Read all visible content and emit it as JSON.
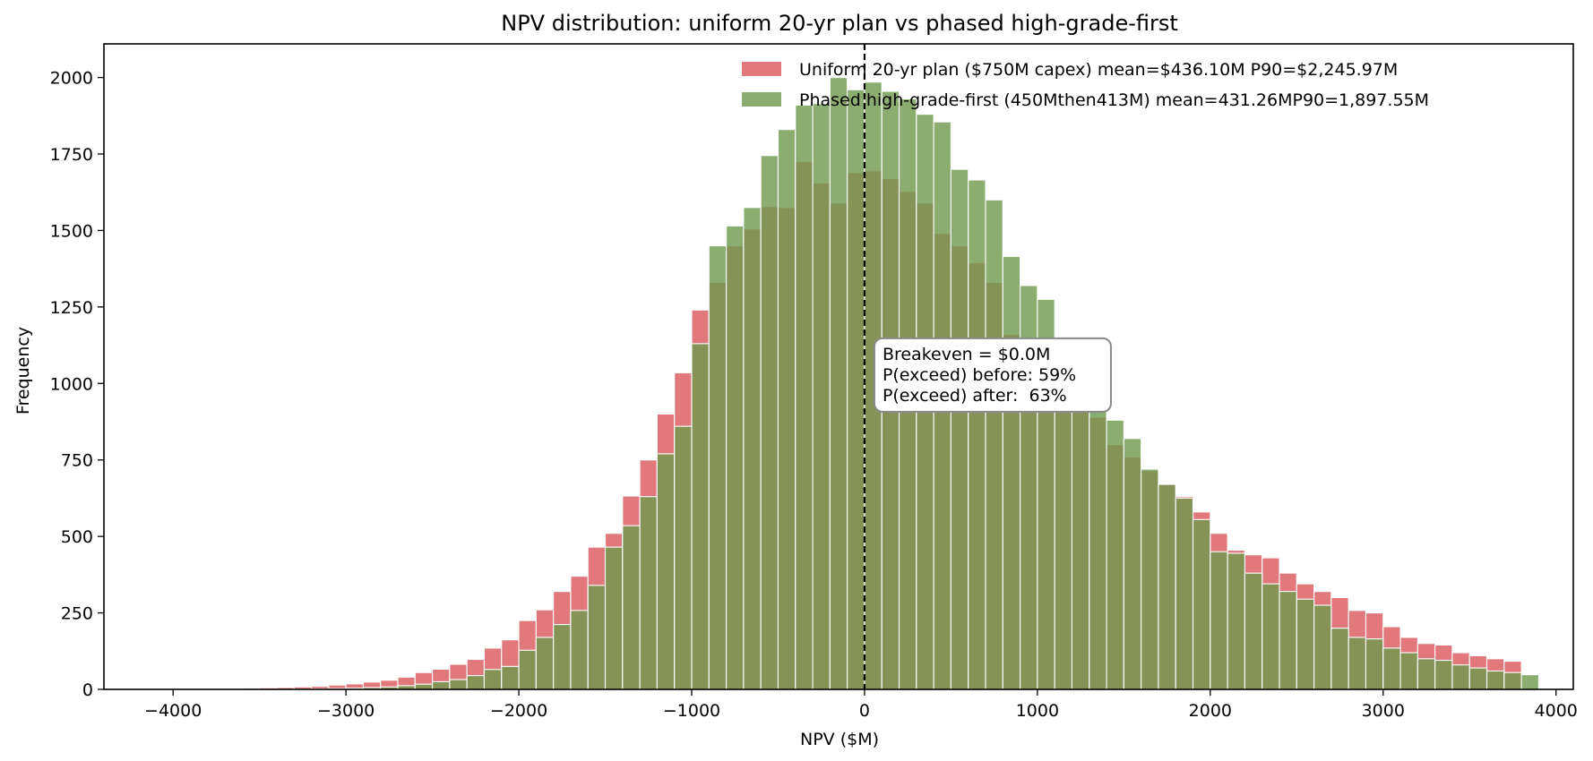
{
  "chart_data": {
    "type": "histogram",
    "title": "NPV distribution: uniform 20-yr plan vs phased high-grade-first",
    "xlabel": "NPV  ($M)",
    "ylabel": "Frequency",
    "xlim": [
      -4400,
      4100
    ],
    "ylim": [
      0,
      2110
    ],
    "xticks": [
      -4000,
      -3000,
      -2000,
      -1000,
      0,
      1000,
      2000,
      3000,
      4000
    ],
    "xtick_labels": [
      "−4000",
      "−3000",
      "−2000",
      "−1000",
      "0",
      "1000",
      "2000",
      "3000",
      "4000"
    ],
    "yticks": [
      0,
      250,
      500,
      750,
      1000,
      1250,
      1500,
      1750,
      2000
    ],
    "ytick_labels": [
      "0",
      "250",
      "500",
      "750",
      "1000",
      "1250",
      "1500",
      "1750",
      "2000"
    ],
    "grid": false,
    "legend_position": "top-right",
    "bin_start": -4400,
    "bin_width": 100,
    "series": [
      {
        "name": "Uniform 20-yr plan ($750M capex)  mean=$436.10M  P90=$2,245.97M",
        "color": "#d9575b",
        "values": [
          0,
          0,
          0,
          0,
          1,
          1,
          2,
          3,
          4,
          5,
          6,
          8,
          10,
          14,
          18,
          24,
          30,
          40,
          55,
          66,
          82,
          98,
          135,
          162,
          225,
          260,
          320,
          370,
          465,
          510,
          632,
          750,
          900,
          1035,
          1240,
          1330,
          1450,
          1505,
          1578,
          1575,
          1725,
          1655,
          1590,
          1689,
          1695,
          1670,
          1628,
          1590,
          1490,
          1450,
          1395,
          1330,
          1160,
          1080,
          1040,
          990,
          950,
          890,
          800,
          760,
          715,
          670,
          630,
          580,
          510,
          455,
          440,
          430,
          380,
          345,
          320,
          300,
          258,
          250,
          205,
          170,
          150,
          145,
          120,
          110,
          100,
          92
        ]
      },
      {
        "name": "Phased high-grade-first (450Mthen413M)   mean=431.26MP90=1,897.55M",
        "color": "#6e9a4c",
        "values": [
          0,
          0,
          0,
          0,
          0,
          0,
          0,
          0,
          0,
          0,
          0,
          1,
          2,
          3,
          4,
          6,
          8,
          12,
          17,
          25,
          32,
          45,
          65,
          75,
          128,
          170,
          212,
          258,
          340,
          465,
          535,
          630,
          770,
          860,
          1130,
          1450,
          1515,
          1575,
          1745,
          1830,
          1910,
          1915,
          2000,
          1960,
          1985,
          1955,
          1930,
          1880,
          1855,
          1700,
          1665,
          1600,
          1415,
          1320,
          1275,
          1118,
          1030,
          930,
          880,
          820,
          720,
          670,
          625,
          555,
          450,
          445,
          380,
          345,
          320,
          295,
          275,
          200,
          170,
          165,
          135,
          120,
          100,
          95,
          80,
          70,
          60,
          55,
          48
        ]
      }
    ],
    "reference_lines": [
      {
        "x": 0,
        "style": "dashed"
      }
    ],
    "annotation": {
      "lines": [
        "Breakeven = $0.0M",
        "P(exceed) before: 59%",
        "P(exceed) after:  63%"
      ],
      "anchor_x": 0,
      "anchor_y": 1130
    }
  }
}
